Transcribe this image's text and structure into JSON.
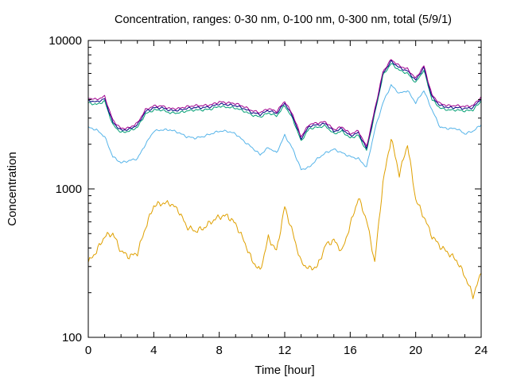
{
  "chart_data": {
    "type": "line",
    "title": "Concentration, ranges: 0-30 nm, 0-100 nm, 0-300 nm, total (5/9/1)",
    "xlabel": "Time [hour]",
    "ylabel": "Concentration",
    "xlim": [
      0,
      24
    ],
    "ylim": [
      100,
      10000
    ],
    "yscale": "log",
    "xticks": [
      0,
      4,
      8,
      12,
      16,
      20,
      24
    ],
    "xtick_labels": [
      "0",
      "4",
      "8",
      "12",
      "16",
      "20",
      "24"
    ],
    "yticks": [
      100,
      1000,
      10000
    ],
    "ytick_labels": [
      "100",
      "1000",
      "10000"
    ],
    "legend": "none",
    "grid": false,
    "x": [
      0,
      0.5,
      1,
      1.5,
      2,
      2.5,
      3,
      3.5,
      4,
      4.5,
      5,
      5.5,
      6,
      6.5,
      7,
      7.5,
      8,
      8.5,
      9,
      9.5,
      10,
      10.5,
      11,
      11.5,
      12,
      12.5,
      13,
      13.5,
      14,
      14.5,
      15,
      15.5,
      16,
      16.5,
      17,
      17.5,
      18,
      18.5,
      19,
      19.5,
      20,
      20.5,
      21,
      21.5,
      22,
      22.5,
      23,
      23.5,
      24
    ],
    "series": [
      {
        "color": "#dfa000",
        "values": [
          320,
          380,
          480,
          500,
          380,
          350,
          370,
          550,
          770,
          800,
          800,
          720,
          560,
          520,
          540,
          600,
          650,
          660,
          580,
          450,
          330,
          280,
          470,
          380,
          760,
          500,
          320,
          290,
          300,
          420,
          450,
          380,
          570,
          870,
          620,
          320,
          1100,
          2200,
          1250,
          2000,
          850,
          650,
          480,
          410,
          370,
          330,
          260,
          190,
          270
        ]
      },
      {
        "color": "#56b4e9",
        "values": [
          2600,
          2500,
          2250,
          1650,
          1500,
          1550,
          1600,
          2000,
          2450,
          2500,
          2500,
          2400,
          2250,
          2200,
          2250,
          2350,
          2450,
          2450,
          2350,
          2100,
          1900,
          1700,
          1900,
          1750,
          2300,
          1850,
          1350,
          1400,
          1600,
          1750,
          1850,
          1750,
          1650,
          1600,
          1400,
          2500,
          3800,
          5000,
          4400,
          4600,
          3800,
          4600,
          3400,
          2600,
          2550,
          2550,
          2350,
          2450,
          2700
        ]
      },
      {
        "color": "#009e73",
        "values": [
          3800,
          3700,
          3900,
          2700,
          2400,
          2450,
          2600,
          3200,
          3400,
          3400,
          3250,
          3250,
          3350,
          3400,
          3400,
          3450,
          3600,
          3550,
          3500,
          3350,
          3150,
          3050,
          3250,
          3100,
          3650,
          2950,
          2100,
          2550,
          2600,
          2650,
          2350,
          2450,
          2200,
          2300,
          1800,
          3200,
          5800,
          7000,
          6300,
          6000,
          5200,
          6300,
          4000,
          3500,
          3400,
          3400,
          3350,
          3400,
          3900
        ]
      },
      {
        "color": "#000080",
        "values": [
          3950,
          3850,
          4050,
          2800,
          2480,
          2520,
          2700,
          3320,
          3520,
          3520,
          3380,
          3380,
          3480,
          3530,
          3530,
          3580,
          3740,
          3690,
          3640,
          3480,
          3270,
          3170,
          3380,
          3220,
          3790,
          3060,
          2180,
          2650,
          2700,
          2750,
          2440,
          2540,
          2280,
          2390,
          1870,
          3320,
          6000,
          7250,
          6550,
          6230,
          5400,
          6550,
          4150,
          3640,
          3530,
          3530,
          3480,
          3530,
          4050
        ]
      },
      {
        "color": "#a0008f",
        "values": [
          4100,
          4000,
          4200,
          2900,
          2550,
          2580,
          2780,
          3420,
          3620,
          3620,
          3480,
          3480,
          3580,
          3640,
          3640,
          3690,
          3860,
          3810,
          3760,
          3590,
          3370,
          3270,
          3480,
          3320,
          3900,
          3150,
          2250,
          2730,
          2780,
          2830,
          2510,
          2620,
          2350,
          2460,
          1920,
          3420,
          6150,
          7450,
          6750,
          6420,
          5560,
          6750,
          4280,
          3750,
          3640,
          3640,
          3590,
          3640,
          4180
        ]
      }
    ]
  }
}
